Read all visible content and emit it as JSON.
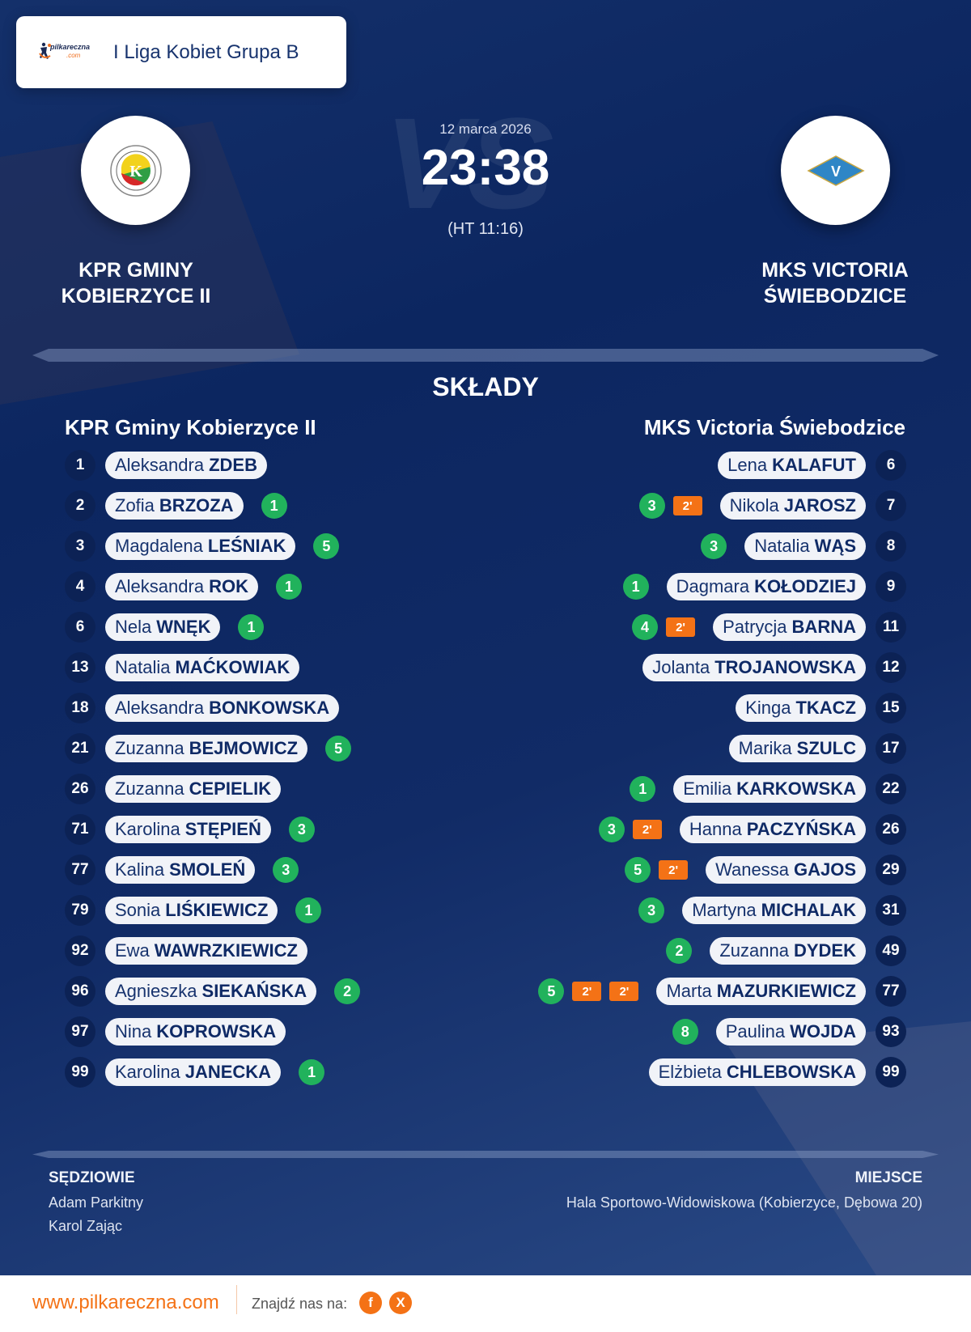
{
  "header": {
    "brand_logo_text": "pilkareczna",
    "brand_logo_suffix": ".com",
    "league": "I Liga Kobiet Grupa B"
  },
  "match": {
    "date": "12 marca 2026",
    "score": "23:38",
    "halftime": "(HT 11:16)",
    "vs_watermark": "VS"
  },
  "home_team": {
    "title_line1": "KPR GMINY",
    "title_line2": "KOBIERZYCE II",
    "roster_title": "KPR Gminy Kobierzyce II",
    "logo_colors": [
      "#f2d21c",
      "#2f9e44",
      "#d62828"
    ]
  },
  "away_team": {
    "title_line1": "MKS VICTORIA",
    "title_line2": "ŚWIEBODZICE",
    "roster_title": "MKS Victoria Świebodzice",
    "logo_color": "#2f86c6"
  },
  "lineups_title": "SKŁADY",
  "home_players": [
    {
      "number": "1",
      "first": "Aleksandra",
      "last": "ZDEB",
      "goals": "",
      "penalties": []
    },
    {
      "number": "2",
      "first": "Zofia",
      "last": "BRZOZA",
      "goals": "1",
      "penalties": []
    },
    {
      "number": "3",
      "first": "Magdalena",
      "last": "LEŚNIAK",
      "goals": "5",
      "penalties": []
    },
    {
      "number": "4",
      "first": "Aleksandra",
      "last": "ROK",
      "goals": "1",
      "penalties": []
    },
    {
      "number": "6",
      "first": "Nela",
      "last": "WNĘK",
      "goals": "1",
      "penalties": []
    },
    {
      "number": "13",
      "first": "Natalia",
      "last": "MAĆKOWIAK",
      "goals": "",
      "penalties": []
    },
    {
      "number": "18",
      "first": "Aleksandra",
      "last": "BONKOWSKA",
      "goals": "",
      "penalties": []
    },
    {
      "number": "21",
      "first": "Zuzanna",
      "last": "BEJMOWICZ",
      "goals": "5",
      "penalties": []
    },
    {
      "number": "26",
      "first": "Zuzanna",
      "last": "CEPIELIK",
      "goals": "",
      "penalties": []
    },
    {
      "number": "71",
      "first": "Karolina",
      "last": "STĘPIEŃ",
      "goals": "3",
      "penalties": []
    },
    {
      "number": "77",
      "first": "Kalina",
      "last": "SMOLEŃ",
      "goals": "3",
      "penalties": []
    },
    {
      "number": "79",
      "first": "Sonia",
      "last": "LIŚKIEWICZ",
      "goals": "1",
      "penalties": []
    },
    {
      "number": "92",
      "first": "Ewa",
      "last": "WAWRZKIEWICZ",
      "goals": "",
      "penalties": []
    },
    {
      "number": "96",
      "first": "Agnieszka",
      "last": "SIEKAŃSKA",
      "goals": "2",
      "penalties": []
    },
    {
      "number": "97",
      "first": "Nina",
      "last": "KOPROWSKA",
      "goals": "",
      "penalties": []
    },
    {
      "number": "99",
      "first": "Karolina",
      "last": "JANECKA",
      "goals": "1",
      "penalties": []
    }
  ],
  "away_players": [
    {
      "number": "6",
      "first": "Lena",
      "last": "KALAFUT",
      "goals": "",
      "penalties": []
    },
    {
      "number": "7",
      "first": "Nikola",
      "last": "JAROSZ",
      "goals": "3",
      "penalties": [
        "2'"
      ]
    },
    {
      "number": "8",
      "first": "Natalia",
      "last": "WĄS",
      "goals": "3",
      "penalties": []
    },
    {
      "number": "9",
      "first": "Dagmara",
      "last": "KOŁODZIEJ",
      "goals": "1",
      "penalties": []
    },
    {
      "number": "11",
      "first": "Patrycja",
      "last": "BARNA",
      "goals": "4",
      "penalties": [
        "2'"
      ]
    },
    {
      "number": "12",
      "first": "Jolanta",
      "last": "TROJANOWSKA",
      "goals": "",
      "penalties": []
    },
    {
      "number": "15",
      "first": "Kinga",
      "last": "TKACZ",
      "goals": "",
      "penalties": []
    },
    {
      "number": "17",
      "first": "Marika",
      "last": "SZULC",
      "goals": "",
      "penalties": []
    },
    {
      "number": "22",
      "first": "Emilia",
      "last": "KARKOWSKA",
      "goals": "1",
      "penalties": []
    },
    {
      "number": "26",
      "first": "Hanna",
      "last": "PACZYŃSKA",
      "goals": "3",
      "penalties": [
        "2'"
      ]
    },
    {
      "number": "29",
      "first": "Wanessa",
      "last": "GAJOS",
      "goals": "5",
      "penalties": [
        "2'"
      ]
    },
    {
      "number": "31",
      "first": "Martyna",
      "last": "MICHALAK",
      "goals": "3",
      "penalties": []
    },
    {
      "number": "49",
      "first": "Zuzanna",
      "last": "DYDEK",
      "goals": "2",
      "penalties": []
    },
    {
      "number": "77",
      "first": "Marta",
      "last": "MAZURKIEWICZ",
      "goals": "5",
      "penalties": [
        "2'",
        "2'"
      ]
    },
    {
      "number": "93",
      "first": "Paulina",
      "last": "WOJDA",
      "goals": "8",
      "penalties": []
    },
    {
      "number": "99",
      "first": "Elżbieta",
      "last": "CHLEBOWSKA",
      "goals": "",
      "penalties": []
    }
  ],
  "referees": {
    "label": "SĘDZIOWIE",
    "names": [
      "Adam Parkitny",
      "Karol Zając"
    ]
  },
  "venue": {
    "label": "MIEJSCE",
    "value": "Hala Sportowo-Widowiskowa (Kobierzyce, Dębowa 20)"
  },
  "footer": {
    "site": "www.pilkareczna.com",
    "find_us": "Znajdź nas na:",
    "social": [
      {
        "icon": "facebook-icon",
        "glyph": "f"
      },
      {
        "icon": "x-icon",
        "glyph": "X"
      }
    ]
  },
  "colors": {
    "background": "#0c2660",
    "goal_badge": "#21b25c",
    "penalty_badge": "#f47216",
    "number_circle": "#0c2255",
    "name_pill": "#f1f3f8",
    "accent_orange": "#f47216"
  }
}
